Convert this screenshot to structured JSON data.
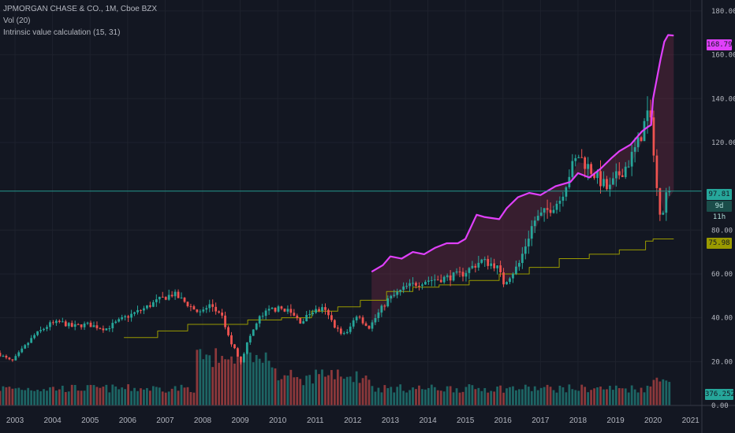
{
  "header": {
    "symbol_line": "JPMORGAN CHASE & CO., 1M, Cboe BZX",
    "indicator_1": "Vol (20)",
    "indicator_2": "Intrinsic value calculation (15, 31)"
  },
  "badges": {
    "intrinsic_value": "168.79",
    "last_price": "97.81",
    "countdown": "9d 11h",
    "floor_value": "75.98",
    "volume": "376.252M"
  },
  "colors": {
    "background": "#131722",
    "up": "#26a69a",
    "down": "#ef5350",
    "intrinsic": "#e040fb",
    "floor": "#9a9a00",
    "last_price_line": "#26a69a",
    "grid": "#1e222d",
    "text": "#b2b5be"
  },
  "chart_data": {
    "type": "candlestick",
    "title": "JPMORGAN CHASE & CO., 1M, Cboe BZX",
    "y_ticks": [
      180,
      160,
      140,
      120,
      80,
      60,
      40,
      20,
      0
    ],
    "y_tick_labels": [
      "180.00",
      "160.00",
      "140.00",
      "120.00",
      "80.00",
      "60.00",
      "40.00",
      "20.00",
      "0.00"
    ],
    "ylim": [
      0,
      185
    ],
    "x_labels": [
      "2003",
      "2004",
      "2005",
      "2006",
      "2007",
      "2008",
      "2009",
      "2010",
      "2011",
      "2012",
      "2013",
      "2014",
      "2015",
      "2016",
      "2017",
      "2018",
      "2019",
      "2020",
      "2021"
    ],
    "xlim": [
      2002.6,
      2021.3
    ],
    "last_price": 97.81,
    "price_anchors": [
      [
        2002.6,
        24
      ],
      [
        2003.0,
        20
      ],
      [
        2003.3,
        26
      ],
      [
        2003.6,
        32
      ],
      [
        2004.0,
        37
      ],
      [
        2004.3,
        38
      ],
      [
        2004.6,
        36
      ],
      [
        2005.0,
        37
      ],
      [
        2005.5,
        35
      ],
      [
        2006.0,
        40
      ],
      [
        2006.5,
        44
      ],
      [
        2006.9,
        48
      ],
      [
        2007.3,
        51
      ],
      [
        2007.7,
        46
      ],
      [
        2008.0,
        42
      ],
      [
        2008.3,
        46
      ],
      [
        2008.6,
        40
      ],
      [
        2008.8,
        30
      ],
      [
        2009.1,
        20
      ],
      [
        2009.3,
        30
      ],
      [
        2009.6,
        40
      ],
      [
        2009.9,
        44
      ],
      [
        2010.3,
        44
      ],
      [
        2010.7,
        38
      ],
      [
        2011.0,
        43
      ],
      [
        2011.3,
        44
      ],
      [
        2011.7,
        34
      ],
      [
        2011.9,
        32
      ],
      [
        2012.2,
        42
      ],
      [
        2012.5,
        35
      ],
      [
        2012.8,
        43
      ],
      [
        2013.0,
        48
      ],
      [
        2013.5,
        54
      ],
      [
        2014.0,
        57
      ],
      [
        2014.5,
        58
      ],
      [
        2015.0,
        60
      ],
      [
        2015.5,
        66
      ],
      [
        2015.9,
        64
      ],
      [
        2016.1,
        56
      ],
      [
        2016.5,
        64
      ],
      [
        2016.9,
        84
      ],
      [
        2017.2,
        88
      ],
      [
        2017.6,
        94
      ],
      [
        2017.9,
        108
      ],
      [
        2018.1,
        114
      ],
      [
        2018.5,
        106
      ],
      [
        2018.9,
        98
      ],
      [
        2019.1,
        104
      ],
      [
        2019.4,
        110
      ],
      [
        2019.7,
        120
      ],
      [
        2019.95,
        134
      ],
      [
        2020.05,
        125
      ],
      [
        2020.2,
        95
      ],
      [
        2020.3,
        87
      ],
      [
        2020.45,
        97.8
      ]
    ],
    "series": [
      {
        "name": "Intrinsic value calculation (15, 31)",
        "points": [
          [
            2012.5,
            61
          ],
          [
            2012.8,
            64
          ],
          [
            2013.0,
            68
          ],
          [
            2013.3,
            67
          ],
          [
            2013.6,
            70
          ],
          [
            2013.9,
            69
          ],
          [
            2014.2,
            72
          ],
          [
            2014.5,
            74
          ],
          [
            2014.8,
            74
          ],
          [
            2015.0,
            76
          ],
          [
            2015.3,
            87
          ],
          [
            2015.5,
            86
          ],
          [
            2015.9,
            85
          ],
          [
            2016.1,
            90
          ],
          [
            2016.4,
            95
          ],
          [
            2016.7,
            97
          ],
          [
            2017.0,
            96
          ],
          [
            2017.4,
            100
          ],
          [
            2017.8,
            102
          ],
          [
            2018.0,
            106
          ],
          [
            2018.3,
            104
          ],
          [
            2018.6,
            108
          ],
          [
            2018.9,
            113
          ],
          [
            2019.1,
            116
          ],
          [
            2019.4,
            119
          ],
          [
            2019.7,
            125
          ],
          [
            2019.85,
            127
          ],
          [
            2019.95,
            128
          ],
          [
            2020.0,
            140
          ],
          [
            2020.2,
            158
          ],
          [
            2020.3,
            166
          ],
          [
            2020.4,
            169
          ],
          [
            2020.55,
            168.79
          ]
        ]
      },
      {
        "name": "floor",
        "points": [
          [
            2005.9,
            31
          ],
          [
            2006.8,
            34
          ],
          [
            2007.6,
            37
          ],
          [
            2008.4,
            37
          ],
          [
            2009.2,
            39
          ],
          [
            2010.1,
            40
          ],
          [
            2010.9,
            43
          ],
          [
            2011.6,
            45
          ],
          [
            2012.2,
            48
          ],
          [
            2012.9,
            52
          ],
          [
            2013.6,
            54
          ],
          [
            2014.3,
            55
          ],
          [
            2015.1,
            57
          ],
          [
            2015.9,
            60
          ],
          [
            2016.7,
            63
          ],
          [
            2017.5,
            67
          ],
          [
            2018.3,
            69
          ],
          [
            2019.1,
            71
          ],
          [
            2019.8,
            75
          ],
          [
            2020.0,
            75.98
          ],
          [
            2020.55,
            75.98
          ]
        ]
      }
    ],
    "volume_badge": "376.252M"
  }
}
